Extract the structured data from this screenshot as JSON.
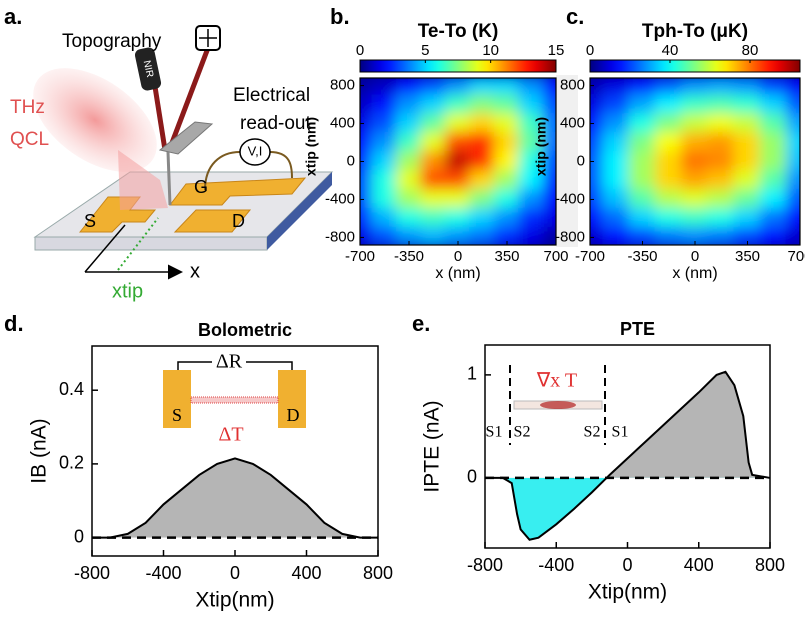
{
  "panel_a": {
    "label": "a.",
    "topography": "Topography",
    "probe": "NIR",
    "source": [
      "THz",
      "QCL"
    ],
    "readout": [
      "Electrical",
      "read-out"
    ],
    "meter": "V,I",
    "gate": "G",
    "source_contact": "S",
    "drain": "D",
    "x_axis": "x",
    "tip_axis": "xtip"
  },
  "chart_data": [
    {
      "type": "heatmap",
      "panel_label": "b.",
      "title": "Te-To (K)",
      "xlabel": "x (nm)",
      "ylabel": "xtip (nm)",
      "colormap": "jet",
      "clim": [
        0,
        15
      ],
      "cticks": [
        0,
        5,
        10,
        15
      ],
      "xlim": [
        -700,
        700
      ],
      "ylim": [
        -880,
        880
      ],
      "xticks": [
        -700,
        -350,
        0,
        350,
        700
      ],
      "yticks": [
        -800,
        -400,
        0,
        400,
        800
      ],
      "x": [
        -700,
        -525,
        -350,
        -175,
        0,
        175,
        350,
        525,
        700
      ],
      "y": [
        800,
        600,
        400,
        200,
        0,
        -200,
        -400,
        -600,
        -800
      ],
      "values": [
        [
          0.5,
          1,
          2,
          3,
          4,
          5,
          5,
          4,
          2
        ],
        [
          1,
          2,
          4,
          5,
          6.5,
          7.5,
          7,
          5,
          3
        ],
        [
          1.5,
          3,
          5,
          7,
          9,
          10,
          9,
          6.5,
          3.5
        ],
        [
          2,
          4,
          6.5,
          9,
          12,
          12.5,
          10,
          7,
          3.5
        ],
        [
          2.5,
          5,
          8,
          11,
          14,
          12.5,
          9.5,
          6,
          3
        ],
        [
          3,
          6,
          9,
          12,
          12,
          10,
          8,
          5.5,
          2.5
        ],
        [
          3,
          6,
          8,
          9,
          9,
          7.5,
          6,
          4,
          2
        ],
        [
          2.5,
          4.5,
          6,
          6.5,
          6,
          5,
          4,
          2.5,
          1.5
        ],
        [
          1.5,
          3,
          4,
          4.5,
          4,
          3.5,
          2.5,
          1.5,
          0.5
        ]
      ]
    },
    {
      "type": "heatmap",
      "panel_label": "c.",
      "title": "Tph-To (μK)",
      "xlabel": "x (nm)",
      "ylabel": "xtip (nm)",
      "colormap": "jet",
      "clim": [
        0,
        105
      ],
      "cticks": [
        0,
        40,
        80
      ],
      "xlim": [
        -700,
        700
      ],
      "ylim": [
        -880,
        880
      ],
      "xticks": [
        -700,
        -350,
        0,
        350,
        700
      ],
      "yticks": [
        -800,
        -400,
        0,
        400,
        800
      ],
      "x": [
        -700,
        -525,
        -350,
        -175,
        0,
        175,
        350,
        525,
        700
      ],
      "y": [
        800,
        600,
        400,
        200,
        0,
        -200,
        -400,
        -600,
        -800
      ],
      "values": [
        [
          5,
          10,
          15,
          22,
          28,
          30,
          28,
          20,
          12
        ],
        [
          10,
          20,
          30,
          38,
          45,
          47,
          44,
          35,
          22
        ],
        [
          15,
          28,
          42,
          52,
          60,
          64,
          60,
          48,
          30
        ],
        [
          20,
          35,
          52,
          65,
          74,
          76,
          70,
          55,
          35
        ],
        [
          22,
          38,
          56,
          70,
          80,
          78,
          70,
          55,
          33
        ],
        [
          22,
          38,
          56,
          70,
          75,
          72,
          62,
          48,
          28
        ],
        [
          20,
          33,
          48,
          58,
          62,
          58,
          50,
          38,
          22
        ],
        [
          14,
          24,
          35,
          42,
          45,
          42,
          35,
          25,
          14
        ],
        [
          8,
          14,
          20,
          25,
          27,
          25,
          20,
          14,
          8
        ]
      ]
    },
    {
      "type": "area",
      "panel_label": "d.",
      "title": "Bolometric",
      "xlabel": "Xtip(nm)",
      "ylabel": "IB (nA)",
      "xlim": [
        -800,
        800
      ],
      "ylim": [
        -0.05,
        0.52
      ],
      "xticks": [
        -800,
        -400,
        0,
        400,
        800
      ],
      "yticks": [
        0,
        0.2,
        0.4
      ],
      "x": [
        -800,
        -700,
        -600,
        -500,
        -400,
        -300,
        -200,
        -100,
        0,
        100,
        200,
        300,
        400,
        500,
        600,
        700,
        800
      ],
      "values": [
        0,
        0,
        0.01,
        0.04,
        0.09,
        0.13,
        0.17,
        0.2,
        0.215,
        0.2,
        0.17,
        0.13,
        0.09,
        0.04,
        0.01,
        0,
        0
      ],
      "color": "#000000",
      "fill_positive": "#b5b5b5",
      "zero_line": true,
      "annotations": [
        "ΔR",
        "S",
        "D",
        "ΔT"
      ]
    },
    {
      "type": "area",
      "panel_label": "e.",
      "title": "PTE",
      "xlabel": "Xtip(nm)",
      "ylabel": "IPTE (nA)",
      "xlim": [
        -800,
        800
      ],
      "ylim": [
        -0.68,
        1.29
      ],
      "xticks": [
        -800,
        -400,
        0,
        400,
        800
      ],
      "yticks": [
        0,
        1
      ],
      "x": [
        -800,
        -700,
        -650,
        -620,
        -600,
        -550,
        -500,
        -400,
        -300,
        -200,
        -100,
        0,
        100,
        200,
        300,
        400,
        500,
        550,
        600,
        650,
        680,
        700,
        800
      ],
      "values": [
        0,
        0,
        -0.05,
        -0.35,
        -0.5,
        -0.6,
        -0.58,
        -0.45,
        -0.3,
        -0.14,
        0.03,
        0.19,
        0.35,
        0.51,
        0.67,
        0.83,
        1.0,
        1.03,
        0.9,
        0.6,
        0.15,
        0.03,
        0
      ],
      "color": "#000000",
      "fill_positive": "#b5b5b5",
      "fill_negative": "#38eef0",
      "zero_line": true,
      "annotations": [
        "∇x T",
        "S1",
        "S2",
        "S2",
        "S1"
      ]
    }
  ]
}
